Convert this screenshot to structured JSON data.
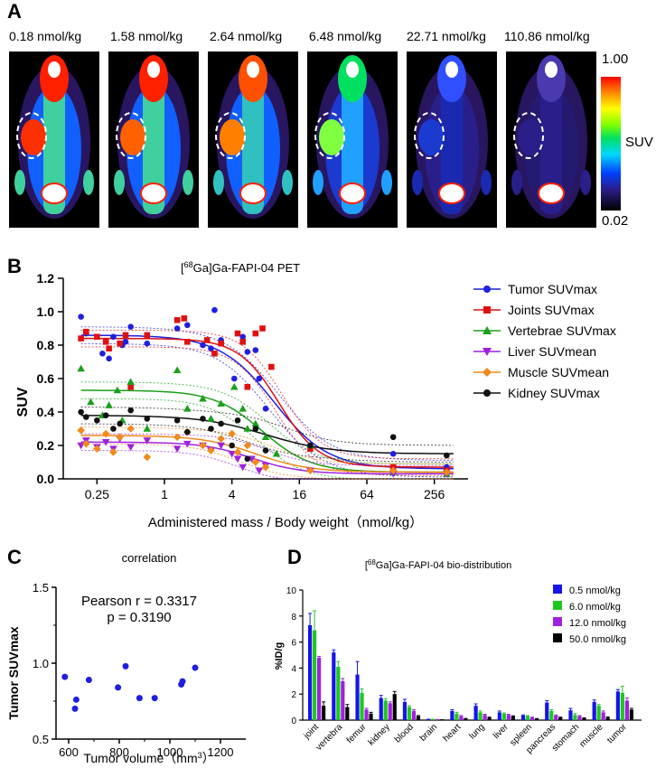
{
  "panels": {
    "a": "A",
    "b": "B",
    "c": "C",
    "d": "D"
  },
  "panel_a": {
    "doses": [
      "0.18 nmol/kg",
      "1.58 nmol/kg",
      "2.64 nmol/kg",
      "6.48 nmol/kg",
      "22.71 nmol/kg",
      "110.86 nmol/kg"
    ],
    "colorbar": {
      "max": "1.00",
      "min": "0.02",
      "label": "SUV"
    }
  },
  "chart_data": [
    {
      "type": "scatter",
      "title": "[68Ga]Ga-FAPI-04 PET",
      "title_sup": "68",
      "title_rest": "Ga]Ga-FAPI-04 PET",
      "xlabel": "Administered mass / Body weight（nmol/kg）",
      "ylabel": "SUV",
      "xscale": "log2",
      "xlim": [
        0.125,
        512
      ],
      "ylim": [
        0,
        1.2
      ],
      "xticks": [
        0.25,
        1,
        4,
        16,
        64,
        256
      ],
      "xticklabels": [
        "0.25",
        "1",
        "4",
        "16",
        "64",
        "256"
      ],
      "yticks": [
        0.0,
        0.2,
        0.4,
        0.6,
        0.8,
        1.0,
        1.2
      ],
      "yticklabels": [
        "0.0",
        "0.2",
        "0.4",
        "0.6",
        "0.8",
        "1.0",
        "1.2"
      ],
      "series": [
        {
          "name": "Tumor SUVmax",
          "color": "#1f1fe0",
          "marker": "circle",
          "fit": {
            "top": 0.86,
            "bottom": 0.06,
            "ec50": 9.5,
            "hill": 1.8
          },
          "x": [
            0.18,
            0.2,
            0.28,
            0.32,
            0.35,
            0.42,
            0.45,
            0.5,
            0.7,
            1.3,
            1.6,
            2.2,
            2.6,
            2.8,
            3.2,
            4.2,
            5.0,
            5.5,
            6.5,
            7.0,
            8.0,
            20,
            110,
            330
          ],
          "y": [
            0.97,
            0.87,
            0.75,
            0.72,
            0.85,
            0.8,
            0.82,
            0.91,
            0.81,
            0.9,
            0.92,
            0.8,
            0.78,
            1.01,
            0.83,
            0.6,
            0.85,
            0.76,
            0.77,
            0.6,
            0.42,
            0.2,
            0.15,
            0.07
          ]
        },
        {
          "name": "Joints SUVmax",
          "color": "#e01010",
          "marker": "square",
          "fit": {
            "top": 0.84,
            "bottom": 0.07,
            "ec50": 10.5,
            "hill": 2.4
          },
          "x": [
            0.18,
            0.2,
            0.25,
            0.3,
            0.32,
            0.4,
            0.45,
            0.5,
            0.7,
            1.3,
            1.5,
            1.6,
            2.4,
            2.8,
            3.2,
            4.5,
            5.0,
            5.5,
            6.5,
            7.5,
            9.0,
            20,
            110,
            330
          ],
          "y": [
            0.84,
            0.88,
            0.85,
            0.82,
            0.78,
            0.81,
            0.86,
            0.55,
            0.86,
            0.95,
            0.96,
            0.82,
            0.83,
            0.75,
            0.81,
            0.87,
            0.82,
            0.55,
            0.87,
            0.9,
            0.67,
            0.18,
            0.07,
            0.05
          ]
        },
        {
          "name": "Vertebrae SUVmax",
          "color": "#1aa01a",
          "marker": "triangle-up",
          "fit": {
            "top": 0.53,
            "bottom": 0.04,
            "ec50": 7.5,
            "hill": 2.0
          },
          "x": [
            0.18,
            0.22,
            0.28,
            0.32,
            0.38,
            0.42,
            0.5,
            0.7,
            1.3,
            1.6,
            2.2,
            2.6,
            3.2,
            4.2,
            5.0,
            5.5,
            6.5,
            8.0,
            10.0,
            20,
            110,
            330
          ],
          "y": [
            0.66,
            0.46,
            0.38,
            0.44,
            0.53,
            0.35,
            0.58,
            0.3,
            0.65,
            0.42,
            0.48,
            0.36,
            0.45,
            0.55,
            0.42,
            0.3,
            0.33,
            0.25,
            0.15,
            0.2,
            0.04,
            0.03
          ]
        },
        {
          "name": "Liver SUVmean",
          "color": "#a020e0",
          "marker": "triangle-down",
          "fit": {
            "top": 0.22,
            "bottom": 0.03,
            "ec50": 6.0,
            "hill": 2.0
          },
          "x": [
            0.18,
            0.2,
            0.25,
            0.3,
            0.35,
            0.4,
            0.5,
            0.7,
            1.3,
            1.6,
            2.2,
            2.6,
            3.2,
            4.0,
            4.5,
            5.0,
            6.0,
            7.0,
            8.0,
            20,
            110,
            330
          ],
          "y": [
            0.2,
            0.23,
            0.19,
            0.22,
            0.18,
            0.24,
            0.19,
            0.23,
            0.18,
            0.21,
            0.2,
            0.17,
            0.2,
            0.15,
            0.12,
            0.07,
            0.12,
            0.05,
            0.08,
            0.05,
            0.03,
            0.03
          ]
        },
        {
          "name": "Muscle SUVmean",
          "color": "#f08a1a",
          "marker": "diamond",
          "fit": {
            "top": 0.26,
            "bottom": 0.04,
            "ec50": 6.5,
            "hill": 1.8
          },
          "x": [
            0.18,
            0.2,
            0.25,
            0.3,
            0.35,
            0.4,
            0.5,
            0.7,
            1.3,
            1.6,
            2.2,
            2.6,
            3.2,
            4.0,
            4.5,
            5.5,
            6.5,
            8.0,
            20,
            110,
            330
          ],
          "y": [
            0.29,
            0.21,
            0.18,
            0.27,
            0.16,
            0.25,
            0.3,
            0.13,
            0.25,
            0.28,
            0.2,
            0.17,
            0.24,
            0.27,
            0.16,
            0.2,
            0.1,
            0.07,
            0.05,
            0.05,
            0.04
          ]
        },
        {
          "name": "Kidney SUVmax",
          "color": "#111111",
          "marker": "circle",
          "fit": {
            "top": 0.38,
            "bottom": 0.15,
            "ec50": 8.0,
            "hill": 1.5
          },
          "x": [
            0.18,
            0.2,
            0.25,
            0.3,
            0.35,
            0.4,
            0.5,
            0.7,
            1.3,
            1.6,
            2.2,
            2.6,
            3.2,
            4.0,
            4.5,
            5.5,
            6.5,
            8.0,
            20,
            110,
            330
          ],
          "y": [
            0.4,
            0.37,
            0.35,
            0.38,
            0.3,
            0.33,
            0.41,
            0.36,
            0.35,
            0.28,
            0.36,
            0.3,
            0.33,
            0.2,
            0.35,
            0.12,
            0.3,
            0.17,
            0.2,
            0.25,
            0.14
          ]
        }
      ]
    },
    {
      "type": "scatter",
      "title": "correlation",
      "xlabel": "Tumor volume（mm",
      "xlabel_sup": "3",
      "xlabel_end": "）",
      "ylabel": "Tumor SUVmax",
      "xlim": [
        550,
        1300
      ],
      "ylim": [
        0.5,
        1.5
      ],
      "xticks": [
        600,
        800,
        1000,
        1200
      ],
      "xticklabels": [
        "600",
        "800",
        "1000",
        "1200"
      ],
      "yticks": [
        0.5,
        1.0,
        1.5
      ],
      "yticklabels": [
        "0.5",
        "1.0",
        "1.5"
      ],
      "annotation": [
        "Pearson r = 0.3317",
        "p = 0.3190"
      ],
      "color": "#1f1fe0",
      "x": [
        585,
        625,
        630,
        680,
        795,
        825,
        880,
        940,
        1045,
        1050,
        1100
      ],
      "y": [
        0.91,
        0.7,
        0.76,
        0.89,
        0.84,
        0.98,
        0.77,
        0.77,
        0.86,
        0.88,
        0.97
      ]
    },
    {
      "type": "bar",
      "title": "[68Ga]Ga-FAPI-04 bio-distribution",
      "title_sup": "68",
      "title_rest": "Ga]Ga-FAPI-04 bio-distribution",
      "ylabel": "%ID/g",
      "ylim": [
        0,
        10
      ],
      "yticks": [
        0,
        2,
        4,
        6,
        8,
        10
      ],
      "yticklabels": [
        "0",
        "2",
        "4",
        "6",
        "8",
        "10"
      ],
      "categories": [
        "joint",
        "vertebra",
        "femur",
        "kidney",
        "blood",
        "brain",
        "heart",
        "lung",
        "liver",
        "spleen",
        "pancreas",
        "stomach",
        "muscle",
        "tumor"
      ],
      "series": [
        {
          "name": "0.5 nmol/kg",
          "color": "#1515e8",
          "values": [
            7.3,
            5.2,
            3.5,
            1.7,
            1.4,
            0.05,
            0.7,
            1.1,
            0.6,
            0.35,
            1.35,
            0.75,
            1.4,
            2.2
          ],
          "errors": [
            0.9,
            0.2,
            1.0,
            0.2,
            0.2,
            0.02,
            0.1,
            0.15,
            0.1,
            0.05,
            0.15,
            0.15,
            0.15,
            0.15
          ]
        },
        {
          "name": "6.0 nmol/kg",
          "color": "#1ec81e",
          "values": [
            6.9,
            4.1,
            2.1,
            1.5,
            1.0,
            0.05,
            0.5,
            0.6,
            0.5,
            0.3,
            0.7,
            0.4,
            1.1,
            2.1
          ],
          "errors": [
            1.5,
            0.4,
            0.3,
            0.15,
            0.1,
            0.02,
            0.1,
            0.1,
            0.05,
            0.05,
            0.1,
            0.1,
            0.1,
            0.5
          ]
        },
        {
          "name": "12.0 nmol/kg",
          "color": "#a020e0",
          "values": [
            4.8,
            3.0,
            0.8,
            1.3,
            0.7,
            0.03,
            0.3,
            0.4,
            0.4,
            0.2,
            0.35,
            0.3,
            0.6,
            1.5
          ],
          "errors": [
            0.1,
            0.2,
            0.1,
            0.1,
            0.1,
            0.02,
            0.05,
            0.05,
            0.05,
            0.03,
            0.05,
            0.05,
            0.1,
            0.2
          ]
        },
        {
          "name": "50.0 nmol/kg",
          "color": "#000000",
          "values": [
            1.1,
            1.0,
            0.5,
            2.0,
            0.3,
            0.02,
            0.1,
            0.2,
            0.3,
            0.1,
            0.2,
            0.15,
            0.2,
            0.8
          ],
          "errors": [
            0.3,
            0.2,
            0.1,
            0.2,
            0.05,
            0.01,
            0.03,
            0.03,
            0.03,
            0.02,
            0.03,
            0.03,
            0.05,
            0.1
          ]
        }
      ]
    }
  ]
}
